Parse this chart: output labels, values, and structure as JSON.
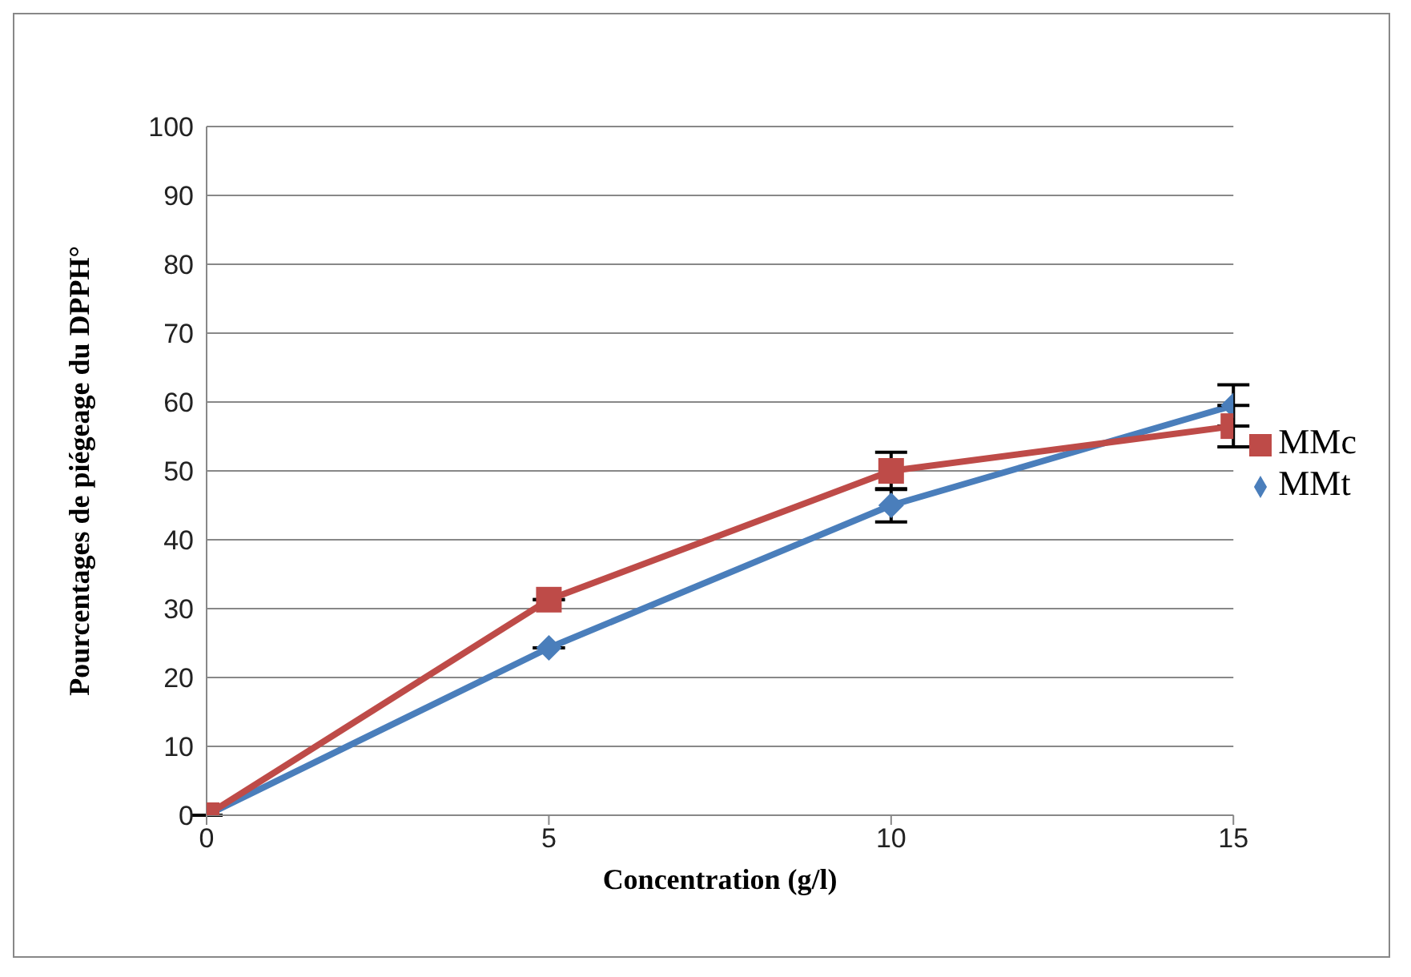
{
  "chart_data": {
    "type": "line",
    "xlabel": "Concentration (g/l)",
    "ylabel": "Pourcentages de piégeage du DPPH°",
    "x": [
      0,
      5,
      10,
      15
    ],
    "series": [
      {
        "name": "MMt",
        "color": "#4a7ebb",
        "values": [
          0,
          24.3,
          45,
          59.5
        ],
        "errors": [
          null,
          null,
          2.4,
          3
        ],
        "marker": "diamond"
      },
      {
        "name": "MMc",
        "color": "#be4b48",
        "values": [
          0,
          31.3,
          50,
          56.5
        ],
        "errors": [
          null,
          null,
          2.7,
          3
        ],
        "marker": "square"
      }
    ],
    "xlim": [
      0,
      15
    ],
    "xticks": [
      0,
      5,
      10,
      15
    ],
    "ylim": [
      0,
      100
    ],
    "yticks": [
      0,
      10,
      20,
      30,
      40,
      50,
      60,
      70,
      80,
      90,
      100
    ],
    "grid": "y",
    "legend": "right"
  }
}
